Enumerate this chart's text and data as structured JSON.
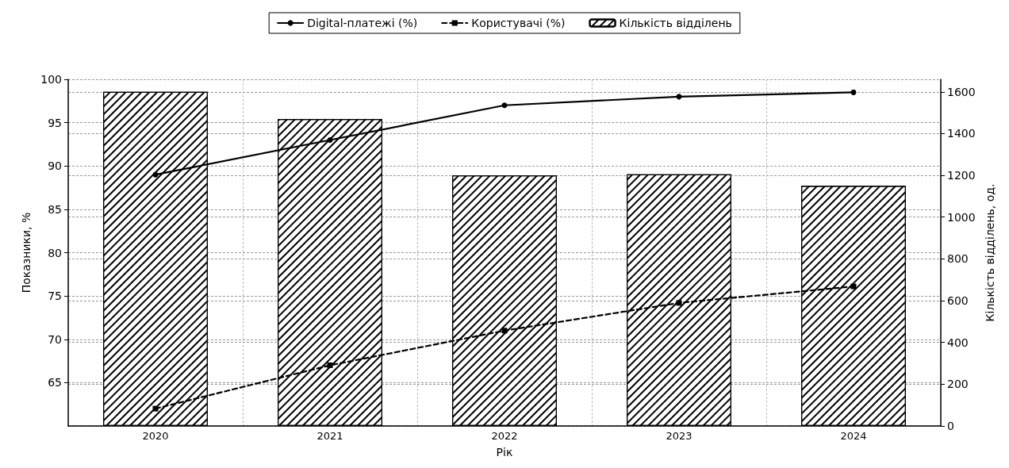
{
  "chart_data": {
    "type": "line",
    "xlabel": "Рік",
    "ylabel": "Показники, %",
    "y2label": "Кількість відділень, од.",
    "categories": [
      "2020",
      "2021",
      "2022",
      "2023",
      "2024"
    ],
    "series": [
      {
        "name": "Digital-платежі (%)",
        "color": "#000000",
        "marker": "circle",
        "line_style": "solid",
        "values": [
          89,
          93,
          97,
          98,
          98.5
        ]
      },
      {
        "name": "Користувачі (%)",
        "color": "#000000",
        "marker": "square",
        "line_style": "dashed",
        "values": [
          62,
          67,
          71,
          74.2,
          76.1
        ]
      },
      {
        "name": "Кількість відділень",
        "type": "bar",
        "axis": "y2",
        "color": "#ffffff",
        "values": [
          1600,
          1470,
          1200,
          1205,
          1150
        ]
      }
    ],
    "ylim": [
      60,
      100
    ],
    "yticks": [
      65,
      70,
      75,
      80,
      85,
      90,
      95,
      100
    ],
    "y2lim": [
      0,
      1660
    ],
    "y2ticks": [
      0,
      200,
      400,
      600,
      800,
      1000,
      1200,
      1400,
      1600
    ],
    "grid": true,
    "legend": "top"
  }
}
